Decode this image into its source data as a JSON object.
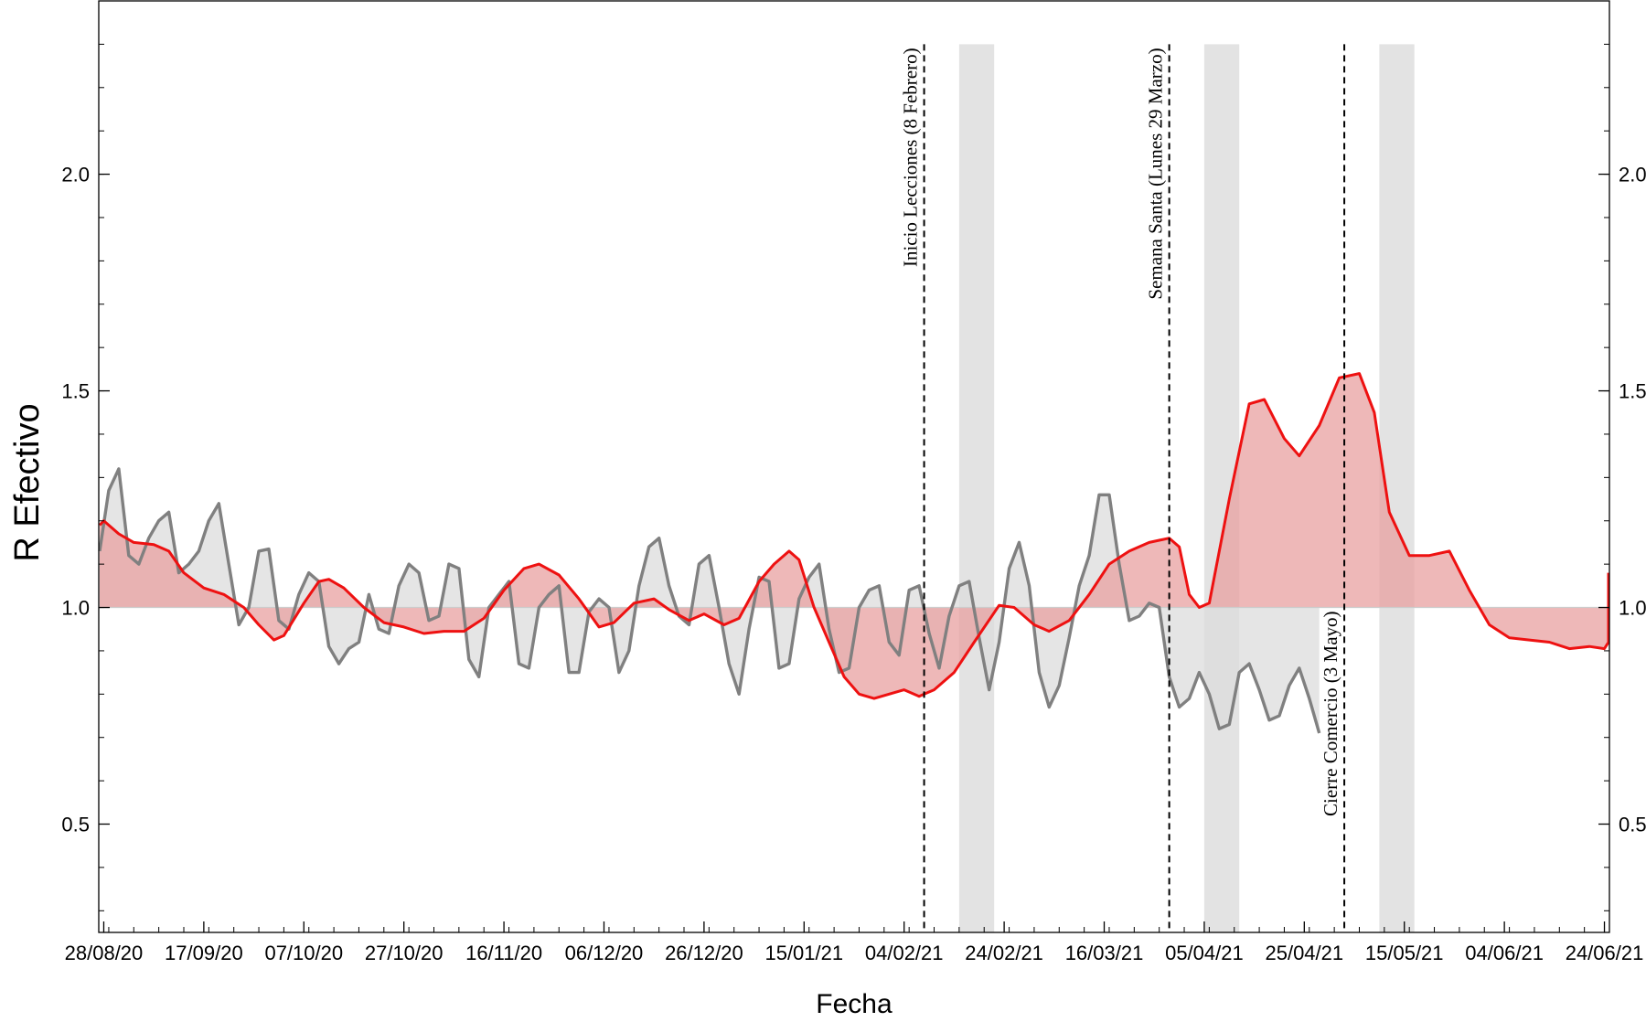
{
  "chart_data": {
    "type": "line",
    "title": "",
    "xlabel": "Fecha",
    "ylabel": "R Efectivo",
    "x_start": "2020-08-27",
    "x_end": "2021-06-25",
    "ylim": [
      0.25,
      2.4
    ],
    "baseline": 1.0,
    "grid": false,
    "legend": "none",
    "x_ticks": [
      {
        "date": "2020-08-28",
        "label": "28/08/20"
      },
      {
        "date": "2020-09-17",
        "label": "17/09/20"
      },
      {
        "date": "2020-10-07",
        "label": "07/10/20"
      },
      {
        "date": "2020-10-27",
        "label": "27/10/20"
      },
      {
        "date": "2020-11-16",
        "label": "16/11/20"
      },
      {
        "date": "2020-12-06",
        "label": "06/12/20"
      },
      {
        "date": "2020-12-26",
        "label": "26/12/20"
      },
      {
        "date": "2021-01-15",
        "label": "15/01/21"
      },
      {
        "date": "2021-02-04",
        "label": "04/02/21"
      },
      {
        "date": "2021-02-24",
        "label": "24/02/21"
      },
      {
        "date": "2021-03-16",
        "label": "16/03/21"
      },
      {
        "date": "2021-04-05",
        "label": "05/04/21"
      },
      {
        "date": "2021-04-25",
        "label": "25/04/21"
      },
      {
        "date": "2021-05-15",
        "label": "15/05/21"
      },
      {
        "date": "2021-06-04",
        "label": "04/06/21"
      },
      {
        "date": "2021-06-24",
        "label": "24/06/21"
      }
    ],
    "y_ticks": [
      {
        "value": 0.5,
        "label": "0.5"
      },
      {
        "value": 1.0,
        "label": "1.0"
      },
      {
        "value": 1.5,
        "label": "1.5"
      },
      {
        "value": 2.0,
        "label": "2.0"
      }
    ],
    "events": [
      {
        "date": "2021-02-08",
        "label": "Inicio Lecciones (8 Febrero)",
        "label_position": "top"
      },
      {
        "date": "2021-03-29",
        "label": "Semana Santa (Lunes 29 Marzo)",
        "label_position": "top"
      },
      {
        "date": "2021-05-03",
        "label": "Cierre Comercio (3 Mayo)",
        "label_position": "bottom"
      }
    ],
    "shaded_periods": [
      {
        "start": "2021-02-15",
        "end": "2021-02-22"
      },
      {
        "start": "2021-04-05",
        "end": "2021-04-12"
      },
      {
        "start": "2021-05-10",
        "end": "2021-05-17"
      }
    ],
    "series": [
      {
        "role": "smoothed",
        "color": "#ee1111",
        "points": [
          [
            "2020-08-27",
            1.19
          ],
          [
            "2020-08-28",
            1.2
          ],
          [
            "2020-08-31",
            1.17
          ],
          [
            "2020-09-03",
            1.15
          ],
          [
            "2020-09-07",
            1.145
          ],
          [
            "2020-09-10",
            1.13
          ],
          [
            "2020-09-13",
            1.08
          ],
          [
            "2020-09-17",
            1.045
          ],
          [
            "2020-09-21",
            1.03
          ],
          [
            "2020-09-25",
            1.0
          ],
          [
            "2020-09-28",
            0.96
          ],
          [
            "2020-10-01",
            0.925
          ],
          [
            "2020-10-03",
            0.935
          ],
          [
            "2020-10-07",
            1.01
          ],
          [
            "2020-10-10",
            1.06
          ],
          [
            "2020-10-12",
            1.065
          ],
          [
            "2020-10-15",
            1.045
          ],
          [
            "2020-10-19",
            1.0
          ],
          [
            "2020-10-23",
            0.965
          ],
          [
            "2020-10-27",
            0.955
          ],
          [
            "2020-10-31",
            0.94
          ],
          [
            "2020-11-04",
            0.945
          ],
          [
            "2020-11-08",
            0.945
          ],
          [
            "2020-11-12",
            0.975
          ],
          [
            "2020-11-16",
            1.04
          ],
          [
            "2020-11-20",
            1.09
          ],
          [
            "2020-11-23",
            1.1
          ],
          [
            "2020-11-27",
            1.075
          ],
          [
            "2020-12-01",
            1.02
          ],
          [
            "2020-12-05",
            0.955
          ],
          [
            "2020-12-08",
            0.965
          ],
          [
            "2020-12-12",
            1.01
          ],
          [
            "2020-12-16",
            1.02
          ],
          [
            "2020-12-19",
            0.995
          ],
          [
            "2020-12-23",
            0.97
          ],
          [
            "2020-12-26",
            0.985
          ],
          [
            "2020-12-30",
            0.96
          ],
          [
            "2021-01-02",
            0.975
          ],
          [
            "2021-01-06",
            1.06
          ],
          [
            "2021-01-09",
            1.1
          ],
          [
            "2021-01-12",
            1.13
          ],
          [
            "2021-01-14",
            1.11
          ],
          [
            "2021-01-17",
            1.0
          ],
          [
            "2021-01-20",
            0.92
          ],
          [
            "2021-01-23",
            0.84
          ],
          [
            "2021-01-26",
            0.8
          ],
          [
            "2021-01-29",
            0.79
          ],
          [
            "2021-02-01",
            0.8
          ],
          [
            "2021-02-04",
            0.81
          ],
          [
            "2021-02-07",
            0.795
          ],
          [
            "2021-02-10",
            0.81
          ],
          [
            "2021-02-14",
            0.85
          ],
          [
            "2021-02-18",
            0.92
          ],
          [
            "2021-02-23",
            1.005
          ],
          [
            "2021-02-26",
            1.0
          ],
          [
            "2021-03-02",
            0.96
          ],
          [
            "2021-03-05",
            0.945
          ],
          [
            "2021-03-09",
            0.97
          ],
          [
            "2021-03-13",
            1.03
          ],
          [
            "2021-03-17",
            1.1
          ],
          [
            "2021-03-21",
            1.13
          ],
          [
            "2021-03-25",
            1.15
          ],
          [
            "2021-03-29",
            1.16
          ],
          [
            "2021-03-31",
            1.14
          ],
          [
            "2021-04-02",
            1.03
          ],
          [
            "2021-04-04",
            1.0
          ],
          [
            "2021-04-06",
            1.01
          ],
          [
            "2021-04-10",
            1.25
          ],
          [
            "2021-04-14",
            1.47
          ],
          [
            "2021-04-17",
            1.48
          ],
          [
            "2021-04-21",
            1.39
          ],
          [
            "2021-04-24",
            1.35
          ],
          [
            "2021-04-28",
            1.42
          ],
          [
            "2021-05-02",
            1.53
          ],
          [
            "2021-05-06",
            1.54
          ],
          [
            "2021-05-09",
            1.45
          ],
          [
            "2021-05-12",
            1.22
          ],
          [
            "2021-05-16",
            1.12
          ],
          [
            "2021-05-20",
            1.12
          ],
          [
            "2021-05-24",
            1.13
          ],
          [
            "2021-05-28",
            1.04
          ],
          [
            "2021-06-01",
            0.96
          ],
          [
            "2021-06-05",
            0.93
          ],
          [
            "2021-06-09",
            0.925
          ],
          [
            "2021-06-13",
            0.92
          ],
          [
            "2021-06-17",
            0.905
          ],
          [
            "2021-06-21",
            0.91
          ],
          [
            "2021-06-24",
            0.905
          ],
          [
            "2021-06-27",
            0.92
          ],
          [
            "2021-06-29",
            0.95
          ],
          [
            "2021-07-01",
            1.02
          ],
          [
            "2021-07-03",
            1.08
          ]
        ]
      },
      {
        "role": "daily",
        "color": "#808080",
        "points": [
          [
            "2020-08-27",
            1.13
          ],
          [
            "2020-08-29",
            1.27
          ],
          [
            "2020-08-31",
            1.32
          ],
          [
            "2020-09-02",
            1.12
          ],
          [
            "2020-09-04",
            1.1
          ],
          [
            "2020-09-06",
            1.16
          ],
          [
            "2020-09-08",
            1.2
          ],
          [
            "2020-09-10",
            1.22
          ],
          [
            "2020-09-12",
            1.08
          ],
          [
            "2020-09-14",
            1.1
          ],
          [
            "2020-09-16",
            1.13
          ],
          [
            "2020-09-18",
            1.2
          ],
          [
            "2020-09-20",
            1.24
          ],
          [
            "2020-09-22",
            1.1
          ],
          [
            "2020-09-24",
            0.96
          ],
          [
            "2020-09-26",
            1.0
          ],
          [
            "2020-09-28",
            1.13
          ],
          [
            "2020-09-30",
            1.135
          ],
          [
            "2020-10-02",
            0.97
          ],
          [
            "2020-10-04",
            0.95
          ],
          [
            "2020-10-06",
            1.03
          ],
          [
            "2020-10-08",
            1.08
          ],
          [
            "2020-10-10",
            1.06
          ],
          [
            "2020-10-12",
            0.91
          ],
          [
            "2020-10-14",
            0.87
          ],
          [
            "2020-10-16",
            0.905
          ],
          [
            "2020-10-18",
            0.92
          ],
          [
            "2020-10-20",
            1.03
          ],
          [
            "2020-10-22",
            0.95
          ],
          [
            "2020-10-24",
            0.94
          ],
          [
            "2020-10-26",
            1.05
          ],
          [
            "2020-10-28",
            1.1
          ],
          [
            "2020-10-30",
            1.08
          ],
          [
            "2020-11-01",
            0.97
          ],
          [
            "2020-11-03",
            0.98
          ],
          [
            "2020-11-05",
            1.1
          ],
          [
            "2020-11-07",
            1.09
          ],
          [
            "2020-11-09",
            0.88
          ],
          [
            "2020-11-11",
            0.84
          ],
          [
            "2020-11-13",
            1.0
          ],
          [
            "2020-11-15",
            1.03
          ],
          [
            "2020-11-17",
            1.06
          ],
          [
            "2020-11-19",
            0.87
          ],
          [
            "2020-11-21",
            0.86
          ],
          [
            "2020-11-23",
            1.0
          ],
          [
            "2020-11-25",
            1.03
          ],
          [
            "2020-11-27",
            1.05
          ],
          [
            "2020-11-29",
            0.85
          ],
          [
            "2020-12-01",
            0.85
          ],
          [
            "2020-12-03",
            0.99
          ],
          [
            "2020-12-05",
            1.02
          ],
          [
            "2020-12-07",
            1.0
          ],
          [
            "2020-12-09",
            0.85
          ],
          [
            "2020-12-11",
            0.9
          ],
          [
            "2020-12-13",
            1.05
          ],
          [
            "2020-12-15",
            1.14
          ],
          [
            "2020-12-17",
            1.16
          ],
          [
            "2020-12-19",
            1.05
          ],
          [
            "2020-12-21",
            0.98
          ],
          [
            "2020-12-23",
            0.96
          ],
          [
            "2020-12-25",
            1.1
          ],
          [
            "2020-12-27",
            1.12
          ],
          [
            "2020-12-29",
            1.0
          ],
          [
            "2020-12-31",
            0.87
          ],
          [
            "2021-01-02",
            0.8
          ],
          [
            "2021-01-04",
            0.95
          ],
          [
            "2021-01-06",
            1.07
          ],
          [
            "2021-01-08",
            1.06
          ],
          [
            "2021-01-10",
            0.86
          ],
          [
            "2021-01-12",
            0.87
          ],
          [
            "2021-01-14",
            1.02
          ],
          [
            "2021-01-16",
            1.07
          ],
          [
            "2021-01-18",
            1.1
          ],
          [
            "2021-01-20",
            0.95
          ],
          [
            "2021-01-22",
            0.85
          ],
          [
            "2021-01-24",
            0.86
          ],
          [
            "2021-01-26",
            1.0
          ],
          [
            "2021-01-28",
            1.04
          ],
          [
            "2021-01-30",
            1.05
          ],
          [
            "2021-02-01",
            0.92
          ],
          [
            "2021-02-03",
            0.89
          ],
          [
            "2021-02-05",
            1.04
          ],
          [
            "2021-02-07",
            1.05
          ],
          [
            "2021-02-09",
            0.94
          ]
        ]
      }
    ],
    "daily_series_continuation": [
      [
        "2021-02-11",
        0.86
      ],
      [
        "2021-02-13",
        0.98
      ],
      [
        "2021-02-15",
        1.05
      ],
      [
        "2021-02-17",
        1.06
      ],
      [
        "2021-02-19",
        0.93
      ],
      [
        "2021-02-21",
        0.81
      ],
      [
        "2021-02-23",
        0.92
      ],
      [
        "2021-02-25",
        1.09
      ],
      [
        "2021-02-27",
        1.15
      ],
      [
        "2021-03-01",
        1.05
      ],
      [
        "2021-03-03",
        0.85
      ],
      [
        "2021-03-05",
        0.77
      ],
      [
        "2021-03-07",
        0.82
      ],
      [
        "2021-03-09",
        0.93
      ],
      [
        "2021-03-11",
        1.05
      ],
      [
        "2021-03-13",
        1.12
      ],
      [
        "2021-03-15",
        1.26
      ],
      [
        "2021-03-17",
        1.26
      ],
      [
        "2021-03-19",
        1.1
      ],
      [
        "2021-03-21",
        0.97
      ],
      [
        "2021-03-23",
        0.98
      ],
      [
        "2021-03-25",
        1.01
      ],
      [
        "2021-03-27",
        1.0
      ],
      [
        "2021-03-29",
        0.84
      ],
      [
        "2021-03-31",
        0.77
      ],
      [
        "2021-04-02",
        0.79
      ],
      [
        "2021-04-04",
        0.85
      ],
      [
        "2021-04-06",
        0.8
      ],
      [
        "2021-04-08",
        0.72
      ],
      [
        "2021-04-10",
        0.73
      ],
      [
        "2021-04-12",
        0.85
      ],
      [
        "2021-04-14",
        0.87
      ],
      [
        "2021-04-16",
        0.81
      ],
      [
        "2021-04-18",
        0.74
      ],
      [
        "2021-04-20",
        0.75
      ],
      [
        "2021-04-22",
        0.82
      ],
      [
        "2021-04-24",
        0.86
      ],
      [
        "2021-04-26",
        0.79
      ],
      [
        "2021-04-28",
        0.71
      ]
    ]
  }
}
